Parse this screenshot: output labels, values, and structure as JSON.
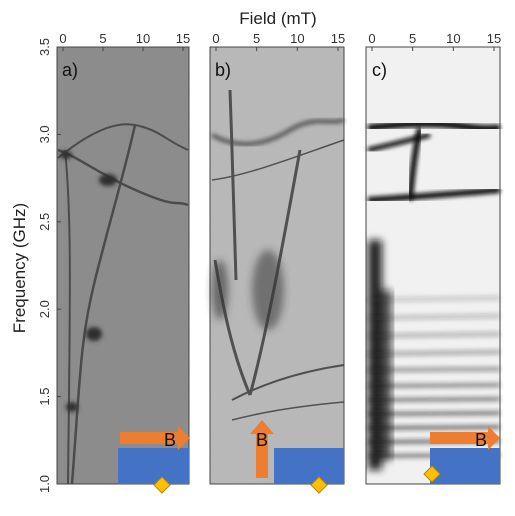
{
  "chart_data": {
    "type": "heatmap",
    "xlabel": "Field (mT)",
    "ylabel": "Frequency (GHz)",
    "x_ticks": [
      0,
      5,
      10,
      15
    ],
    "y_ticks": [
      1.0,
      1.5,
      2.0,
      2.5,
      3.0,
      3.5
    ],
    "xlim": [
      0,
      15
    ],
    "ylim": [
      1.0,
      3.5
    ],
    "colormap": "grayscale",
    "panels": [
      {
        "label": "a)",
        "field_direction": "in-plane",
        "field_symbol": "B",
        "features": [
          {
            "kind": "crossing",
            "x": 1.0,
            "y": 2.92
          },
          {
            "kind": "crossing",
            "x": 5.0,
            "y": 2.78
          },
          {
            "kind": "spot",
            "x": 4.0,
            "y": 1.87
          },
          {
            "kind": "spot",
            "x": 2.5,
            "y": 1.44
          }
        ]
      },
      {
        "label": "b)",
        "field_direction": "out-of-plane",
        "field_symbol": "B",
        "features": [
          {
            "kind": "band",
            "x": 2.0,
            "y": 3.05
          },
          {
            "kind": "branch",
            "x": 5.0,
            "y": 2.1
          }
        ]
      },
      {
        "label": "c)",
        "field_direction": "in-plane",
        "field_symbol": "B",
        "features": [
          {
            "kind": "band",
            "x": 8.0,
            "y": 3.08
          },
          {
            "kind": "band",
            "x": 10.0,
            "y": 2.72
          }
        ]
      }
    ]
  },
  "colors": {
    "arrow": "#ED7D31",
    "substrate": "#4472C4",
    "diamond": "#FFC000",
    "diamond_edge": "#B8860B"
  }
}
